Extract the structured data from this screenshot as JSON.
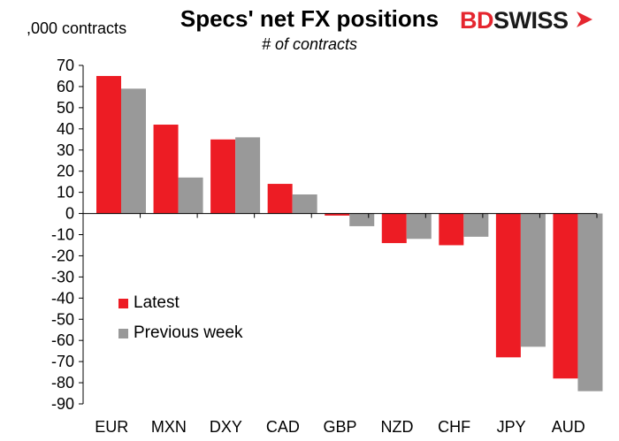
{
  "header": {
    "title": "Specs' net FX positions",
    "subtitle": "# of contracts",
    "unit_label": ",000 contracts",
    "logo_part1": "BD",
    "logo_part2": "SWISS"
  },
  "colors": {
    "latest": "#ed1c24",
    "previous": "#999999",
    "brand_red": "#e5262f"
  },
  "chart_data": {
    "type": "bar",
    "title": "Specs' net FX positions",
    "subtitle": "# of contracts",
    "ylabel": ",000 contracts",
    "categories": [
      "EUR",
      "MXN",
      "DXY",
      "CAD",
      "GBP",
      "NZD",
      "CHF",
      "JPY",
      "AUD"
    ],
    "series": [
      {
        "name": "Latest",
        "values": [
          65,
          42,
          35,
          14,
          -1,
          -14,
          -15,
          -68,
          -78
        ]
      },
      {
        "name": "Previous week",
        "values": [
          59,
          17,
          36,
          9,
          -6,
          -12,
          -11,
          -63,
          -84
        ]
      }
    ],
    "ylim": [
      -90,
      70
    ],
    "yticks": [
      70,
      60,
      50,
      40,
      30,
      20,
      10,
      0,
      -10,
      -20,
      -30,
      -40,
      -50,
      -60,
      -70,
      -80,
      -90
    ],
    "ytick_labels": [
      "70",
      "60",
      "50",
      "40",
      "30",
      "20",
      "10",
      "0",
      "-10",
      "-20",
      "-30",
      "-40",
      "-50",
      "-60",
      "-70",
      "-80",
      "-90"
    ],
    "grid": false,
    "legend_position": "left"
  }
}
